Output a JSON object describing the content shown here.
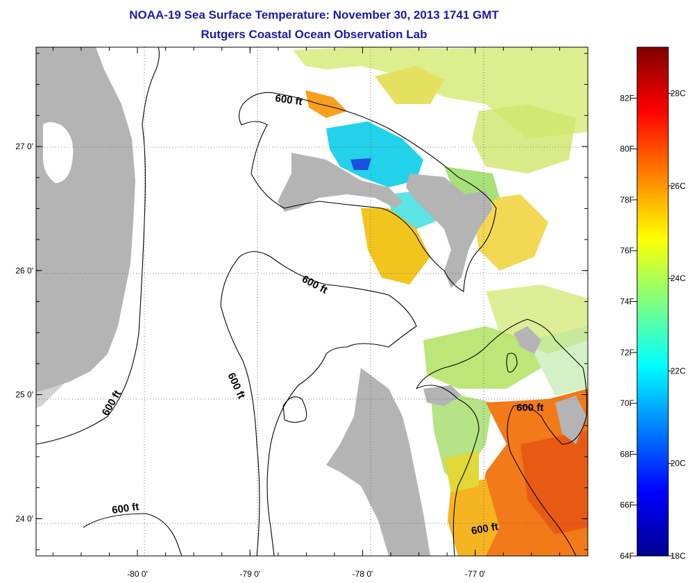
{
  "title": {
    "line1": "NOAA-19 Sea Surface Temperature:  November 30, 2013 1741 GMT",
    "line2": "Rutgers Coastal Ocean Observation Lab"
  },
  "map": {
    "lon_range": [
      -80.9,
      -76.0
    ],
    "lat_range": [
      23.7,
      27.8
    ],
    "lon_ticks": [
      {
        "value": -80,
        "label": "-80 0'"
      },
      {
        "value": -79,
        "label": "-79 0'"
      },
      {
        "value": -78,
        "label": "-78 0'"
      },
      {
        "value": -77,
        "label": "-77 0'"
      }
    ],
    "lat_ticks": [
      {
        "value": 27,
        "label": "27 0'"
      },
      {
        "value": 26,
        "label": "26 0'"
      },
      {
        "value": 25,
        "label": "25 0'"
      },
      {
        "value": 24,
        "label": "24 0'"
      }
    ],
    "land_color": "#b4b4b4",
    "grid": "dotted",
    "contour_labels": [
      "600 ft",
      "600 ft",
      "600 ft",
      "600 ft",
      "600 ft",
      "600 ft"
    ]
  },
  "colorbar": {
    "range_F": [
      64,
      84
    ],
    "range_C": [
      18,
      29
    ],
    "fahrenheit_labels": [
      "82F",
      "80F",
      "78F",
      "76F",
      "74F",
      "72F",
      "70F",
      "68F",
      "66F",
      "64F"
    ],
    "celsius_labels": [
      "28C",
      "26C",
      "24C",
      "22C",
      "20C",
      "18C"
    ],
    "colormap": "jet"
  }
}
